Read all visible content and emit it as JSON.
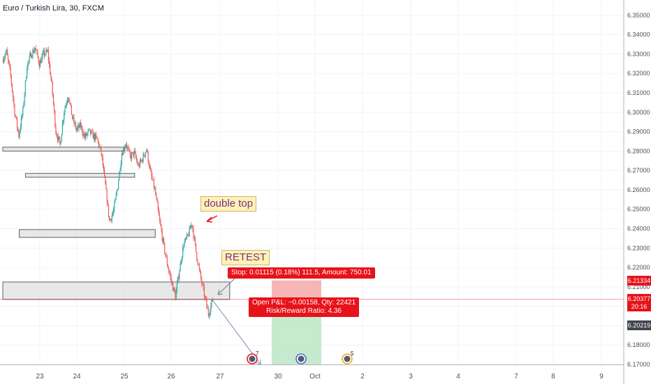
{
  "chart_data": {
    "type": "candlestick",
    "title": "Euro / Turkish Lira, 30, FXCM",
    "ylim": [
      6.17,
      6.355
    ],
    "y_ticks": [
      "6.35000",
      "6.34000",
      "6.33000",
      "6.32000",
      "6.31000",
      "6.30000",
      "6.29000",
      "6.28000",
      "6.27000",
      "6.26000",
      "6.25000",
      "6.24000",
      "6.23000",
      "6.22000",
      "6.21000",
      "6.20000",
      "6.19000",
      "6.18000",
      "6.17000"
    ],
    "x_ticks": [
      "23",
      "24",
      "25",
      "26",
      "27",
      "30",
      "Oct",
      "2",
      "3",
      "4",
      "7",
      "8",
      "9"
    ],
    "price_points": [
      [
        0,
        6.327
      ],
      [
        1,
        6.331
      ],
      [
        2,
        6.319
      ],
      [
        3,
        6.3
      ],
      [
        4,
        6.288
      ],
      [
        5,
        6.301
      ],
      [
        6,
        6.324
      ],
      [
        7,
        6.33
      ],
      [
        8,
        6.333
      ],
      [
        9,
        6.325
      ],
      [
        10,
        6.33
      ],
      [
        11,
        6.331
      ],
      [
        12,
        6.314
      ],
      [
        13,
        6.29
      ],
      [
        14,
        6.283
      ],
      [
        15,
        6.301
      ],
      [
        16,
        6.309
      ],
      [
        17,
        6.297
      ],
      [
        18,
        6.291
      ],
      [
        19,
        6.293
      ],
      [
        20,
        6.287
      ],
      [
        21,
        6.29
      ],
      [
        22,
        6.288
      ],
      [
        23,
        6.286
      ],
      [
        24,
        6.279
      ],
      [
        25,
        6.262
      ],
      [
        26,
        6.244
      ],
      [
        27,
        6.249
      ],
      [
        28,
        6.262
      ],
      [
        29,
        6.279
      ],
      [
        30,
        6.284
      ],
      [
        31,
        6.277
      ],
      [
        32,
        6.279
      ],
      [
        33,
        6.272
      ],
      [
        34,
        6.276
      ],
      [
        35,
        6.281
      ],
      [
        36,
        6.268
      ],
      [
        37,
        6.26
      ],
      [
        38,
        6.246
      ],
      [
        39,
        6.233
      ],
      [
        40,
        6.222
      ],
      [
        41,
        6.213
      ],
      [
        42,
        6.205
      ],
      [
        43,
        6.219
      ],
      [
        44,
        6.232
      ],
      [
        45,
        6.236
      ],
      [
        46,
        6.243
      ],
      [
        47,
        6.228
      ],
      [
        48,
        6.216
      ],
      [
        49,
        6.206
      ],
      [
        50,
        6.196
      ],
      [
        51,
        6.203
      ]
    ],
    "horizontal_zones": [
      {
        "from": 6.28,
        "to": 6.282,
        "x_start": 0,
        "x_end": 24.5
      },
      {
        "from": 6.2665,
        "to": 6.2685,
        "x_start": 5.5,
        "x_end": 27
      },
      {
        "from": 6.2355,
        "to": 6.2395,
        "x_start": 4,
        "x_end": 32
      },
      {
        "from": 6.2035,
        "to": 6.2125,
        "x_start": 0,
        "x_end": 46.5
      }
    ],
    "position": {
      "entry": 6.2037,
      "stop": 6.2133,
      "target": 6.17,
      "x_start": 28,
      "x_end": 33
    },
    "current_price_tags": [
      {
        "text": "6.21334",
        "price": 6.21334,
        "color": "#e8121a"
      },
      {
        "text": "6.20377",
        "price": 6.20377,
        "color": "#e8121a"
      },
      {
        "text": "20:16",
        "price": 6.19977,
        "color": "#e8121a"
      },
      {
        "text": "6.20219",
        "price": 6.19,
        "color": "#43464f"
      }
    ],
    "event_icons": [
      {
        "x_index": 26,
        "badge": "7"
      },
      {
        "x_index": 31,
        "badge": ""
      },
      {
        "x_index": 36,
        "badge": "5"
      }
    ]
  },
  "annotations": {
    "double_top": "double top",
    "retest": "RETEST",
    "stop_label": "Stop: 0.01115 (0.18%) 111.5, Amount: 750.01",
    "pl_label_1": "Open P&L: −0.00158, Qty: 22421",
    "pl_label_2": "Risk/Reward Ratio: 4.36"
  },
  "colors": {
    "up": "#26a69a",
    "down": "#ef5350",
    "zone_fill": "#e0e0e0",
    "zone_border": "#5d606b",
    "risk_fill": "#f5a3a3",
    "reward_fill": "#b7e5c0"
  }
}
